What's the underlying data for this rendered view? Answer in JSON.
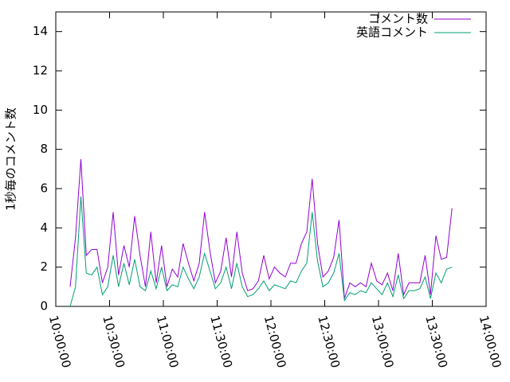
{
  "chart_data": {
    "type": "line",
    "ylabel": "1秒毎のコメント数",
    "x": [
      "10:08:00",
      "10:11:00",
      "10:14:00",
      "10:17:00",
      "10:20:00",
      "10:23:00",
      "10:26:00",
      "10:29:00",
      "10:32:00",
      "10:35:00",
      "10:38:00",
      "10:41:00",
      "10:44:00",
      "10:47:00",
      "10:50:00",
      "10:53:00",
      "10:56:00",
      "10:59:00",
      "11:02:00",
      "11:05:00",
      "11:08:00",
      "11:11:00",
      "11:14:00",
      "11:17:00",
      "11:20:00",
      "11:23:00",
      "11:26:00",
      "11:29:00",
      "11:32:00",
      "11:35:00",
      "11:38:00",
      "11:41:00",
      "11:44:00",
      "11:47:00",
      "11:50:00",
      "11:53:00",
      "11:56:00",
      "11:59:00",
      "12:02:00",
      "12:05:00",
      "12:08:00",
      "12:11:00",
      "12:14:00",
      "12:17:00",
      "12:20:00",
      "12:23:00",
      "12:26:00",
      "12:29:00",
      "12:32:00",
      "12:35:00",
      "12:38:00",
      "12:41:00",
      "12:44:00",
      "12:47:00",
      "12:50:00",
      "12:53:00",
      "12:56:00",
      "12:59:00",
      "13:02:00",
      "13:05:00",
      "13:08:00",
      "13:11:00",
      "13:14:00",
      "13:17:00",
      "13:20:00",
      "13:23:00",
      "13:26:00",
      "13:29:00",
      "13:32:00",
      "13:35:00",
      "13:38:00",
      "13:41:00"
    ],
    "series": [
      {
        "name": "コメント数",
        "color": "#9400d3",
        "values": [
          1.0,
          3.5,
          7.5,
          2.6,
          2.9,
          2.9,
          1.2,
          2.0,
          4.8,
          1.6,
          3.1,
          2.0,
          4.6,
          2.6,
          1.0,
          3.8,
          1.2,
          3.1,
          1.0,
          1.9,
          1.5,
          3.2,
          2.2,
          1.3,
          2.2,
          4.8,
          2.8,
          1.2,
          1.8,
          3.5,
          1.5,
          3.8,
          1.7,
          0.8,
          0.9,
          1.3,
          2.6,
          1.4,
          2.0,
          1.7,
          1.5,
          2.2,
          2.2,
          3.2,
          3.8,
          6.5,
          3.2,
          1.5,
          1.8,
          2.5,
          4.4,
          0.4,
          1.2,
          1.0,
          1.2,
          1.0,
          2.2,
          1.3,
          1.1,
          1.7,
          0.8,
          2.7,
          0.6,
          1.2,
          1.2,
          1.2,
          2.6,
          0.6,
          3.6,
          2.4,
          2.5,
          5.0
        ]
      },
      {
        "name": "英語コメント",
        "color": "#009e73",
        "values": [
          0.0,
          1.0,
          5.6,
          1.7,
          1.6,
          2.0,
          0.6,
          1.0,
          2.6,
          1.0,
          2.2,
          1.1,
          2.4,
          1.0,
          0.8,
          1.8,
          0.9,
          2.0,
          0.8,
          1.1,
          1.0,
          2.0,
          1.4,
          0.9,
          1.5,
          2.7,
          1.8,
          0.9,
          1.2,
          2.0,
          0.9,
          2.2,
          1.0,
          0.5,
          0.6,
          0.9,
          1.3,
          0.8,
          1.1,
          1.0,
          0.9,
          1.3,
          1.2,
          1.8,
          2.2,
          4.8,
          2.3,
          1.0,
          1.2,
          1.7,
          2.7,
          0.3,
          0.7,
          0.6,
          0.8,
          0.7,
          1.2,
          0.9,
          0.6,
          1.2,
          0.5,
          1.6,
          0.4,
          0.8,
          0.8,
          0.9,
          1.5,
          0.4,
          1.7,
          1.2,
          1.9,
          2.0
        ]
      }
    ],
    "xlim": [
      "10:00:00",
      "14:00:00"
    ],
    "xticks": [
      "10:00:00",
      "10:30:00",
      "11:00:00",
      "11:30:00",
      "12:00:00",
      "12:30:00",
      "13:00:00",
      "13:30:00",
      "14:00:00"
    ],
    "ylim": [
      0,
      15
    ],
    "yticks": [
      0,
      2,
      4,
      6,
      8,
      10,
      12,
      14
    ],
    "legend": "upper right",
    "grid": false
  }
}
